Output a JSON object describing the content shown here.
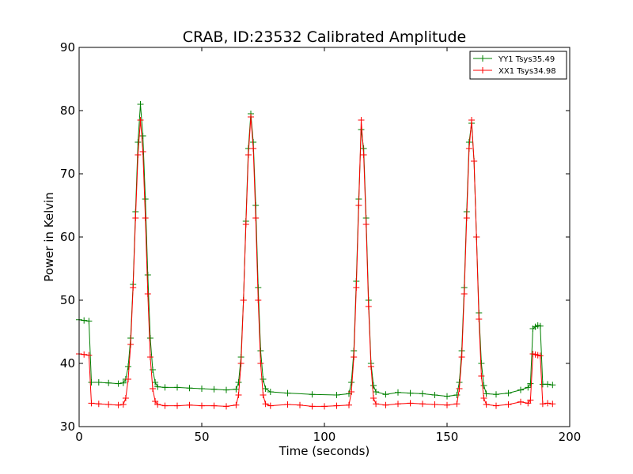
{
  "chart_data": {
    "type": "line",
    "title": "CRAB, ID:23532 Calibrated Amplitude",
    "xlabel": "Time (seconds)",
    "ylabel": "Power in Kelvin",
    "xlim": [
      0,
      200
    ],
    "ylim": [
      30,
      90
    ],
    "xticks": [
      "0",
      "50",
      "100",
      "150",
      "200"
    ],
    "yticks": [
      "30",
      "40",
      "50",
      "60",
      "70",
      "80",
      "90"
    ],
    "grid": false,
    "legend_position": "top-right",
    "marker": "plus",
    "series": [
      {
        "name": "YY1 Tsys35.49",
        "color": "#008000",
        "points": [
          [
            0,
            46.9
          ],
          [
            2,
            46.8
          ],
          [
            4,
            46.7
          ],
          [
            5,
            37.0
          ],
          [
            8,
            37.0
          ],
          [
            12,
            36.9
          ],
          [
            16,
            36.8
          ],
          [
            18,
            36.9
          ],
          [
            19,
            37.5
          ],
          [
            20,
            39.5
          ],
          [
            21,
            44.0
          ],
          [
            22,
            52.5
          ],
          [
            23,
            64.0
          ],
          [
            24,
            75.0
          ],
          [
            25,
            81.0
          ],
          [
            26,
            76.0
          ],
          [
            27,
            66.0
          ],
          [
            28,
            54.0
          ],
          [
            29,
            44.0
          ],
          [
            30,
            39.0
          ],
          [
            31,
            37.0
          ],
          [
            32,
            36.3
          ],
          [
            35,
            36.2
          ],
          [
            40,
            36.2
          ],
          [
            45,
            36.1
          ],
          [
            50,
            36.0
          ],
          [
            55,
            35.9
          ],
          [
            60,
            35.8
          ],
          [
            64,
            35.9
          ],
          [
            65,
            37.0
          ],
          [
            66,
            41.0
          ],
          [
            67,
            50.0
          ],
          [
            68,
            62.5
          ],
          [
            69,
            74.0
          ],
          [
            70,
            79.5
          ],
          [
            71,
            75.0
          ],
          [
            72,
            65.0
          ],
          [
            73,
            52.0
          ],
          [
            74,
            42.0
          ],
          [
            75,
            37.5
          ],
          [
            76,
            36.0
          ],
          [
            78,
            35.5
          ],
          [
            85,
            35.3
          ],
          [
            95,
            35.1
          ],
          [
            105,
            35.0
          ],
          [
            110,
            35.2
          ],
          [
            111,
            37.0
          ],
          [
            112,
            42.0
          ],
          [
            113,
            53.0
          ],
          [
            114,
            66.0
          ],
          [
            115,
            77.0
          ],
          [
            116,
            74.0
          ],
          [
            117,
            63.0
          ],
          [
            118,
            50.0
          ],
          [
            119,
            40.0
          ],
          [
            120,
            36.5
          ],
          [
            121,
            35.5
          ],
          [
            125,
            35.1
          ],
          [
            130,
            35.4
          ],
          [
            135,
            35.3
          ],
          [
            140,
            35.2
          ],
          [
            145,
            35.0
          ],
          [
            150,
            34.8
          ],
          [
            154,
            35.0
          ],
          [
            155,
            37.0
          ],
          [
            156,
            42.0
          ],
          [
            157,
            52.0
          ],
          [
            158,
            64.0
          ],
          [
            159,
            75.0
          ],
          [
            160,
            78.0
          ],
          [
            161,
            72.0
          ],
          [
            162,
            60.0
          ],
          [
            163,
            48.0
          ],
          [
            164,
            40.0
          ],
          [
            165,
            36.5
          ],
          [
            166,
            35.2
          ],
          [
            170,
            35.1
          ],
          [
            175,
            35.3
          ],
          [
            180,
            35.8
          ],
          [
            183,
            36.2
          ],
          [
            184,
            36.8
          ],
          [
            185,
            45.5
          ],
          [
            186,
            45.8
          ],
          [
            187,
            46.0
          ],
          [
            188,
            45.9
          ],
          [
            189,
            36.7
          ],
          [
            191,
            36.7
          ],
          [
            193,
            36.6
          ]
        ]
      },
      {
        "name": "XX1 Tsys34.98",
        "color": "#ff0000",
        "points": [
          [
            0,
            41.5
          ],
          [
            2,
            41.4
          ],
          [
            4,
            41.3
          ],
          [
            5,
            33.7
          ],
          [
            8,
            33.6
          ],
          [
            12,
            33.5
          ],
          [
            16,
            33.4
          ],
          [
            18,
            33.5
          ],
          [
            19,
            34.5
          ],
          [
            20,
            37.5
          ],
          [
            21,
            43.0
          ],
          [
            22,
            52.0
          ],
          [
            23,
            63.0
          ],
          [
            24,
            73.0
          ],
          [
            25,
            78.5
          ],
          [
            26,
            73.5
          ],
          [
            27,
            63.0
          ],
          [
            28,
            51.0
          ],
          [
            29,
            41.0
          ],
          [
            30,
            36.0
          ],
          [
            31,
            34.0
          ],
          [
            32,
            33.5
          ],
          [
            35,
            33.3
          ],
          [
            40,
            33.3
          ],
          [
            45,
            33.4
          ],
          [
            50,
            33.3
          ],
          [
            55,
            33.3
          ],
          [
            60,
            33.2
          ],
          [
            64,
            33.4
          ],
          [
            65,
            35.0
          ],
          [
            66,
            40.0
          ],
          [
            67,
            50.0
          ],
          [
            68,
            62.0
          ],
          [
            69,
            73.0
          ],
          [
            70,
            79.0
          ],
          [
            71,
            74.0
          ],
          [
            72,
            63.0
          ],
          [
            73,
            50.0
          ],
          [
            74,
            40.0
          ],
          [
            75,
            35.0
          ],
          [
            76,
            33.6
          ],
          [
            78,
            33.3
          ],
          [
            85,
            33.5
          ],
          [
            90,
            33.4
          ],
          [
            95,
            33.2
          ],
          [
            100,
            33.2
          ],
          [
            105,
            33.3
          ],
          [
            110,
            33.4
          ],
          [
            111,
            35.5
          ],
          [
            112,
            41.0
          ],
          [
            113,
            52.0
          ],
          [
            114,
            65.0
          ],
          [
            115,
            78.5
          ],
          [
            116,
            73.0
          ],
          [
            117,
            62.0
          ],
          [
            118,
            49.0
          ],
          [
            119,
            39.5
          ],
          [
            120,
            34.5
          ],
          [
            121,
            33.6
          ],
          [
            125,
            33.4
          ],
          [
            130,
            33.6
          ],
          [
            135,
            33.7
          ],
          [
            140,
            33.6
          ],
          [
            145,
            33.5
          ],
          [
            150,
            33.4
          ],
          [
            154,
            33.6
          ],
          [
            155,
            36.0
          ],
          [
            156,
            41.0
          ],
          [
            157,
            51.0
          ],
          [
            158,
            63.0
          ],
          [
            159,
            74.0
          ],
          [
            160,
            78.5
          ],
          [
            161,
            72.0
          ],
          [
            162,
            60.0
          ],
          [
            163,
            47.0
          ],
          [
            164,
            38.0
          ],
          [
            165,
            34.5
          ],
          [
            166,
            33.5
          ],
          [
            170,
            33.3
          ],
          [
            175,
            33.5
          ],
          [
            180,
            33.9
          ],
          [
            183,
            33.7
          ],
          [
            184,
            34.2
          ],
          [
            185,
            41.5
          ],
          [
            186,
            41.4
          ],
          [
            187,
            41.3
          ],
          [
            188,
            41.2
          ],
          [
            189,
            33.6
          ],
          [
            191,
            33.7
          ],
          [
            193,
            33.6
          ]
        ]
      }
    ]
  }
}
